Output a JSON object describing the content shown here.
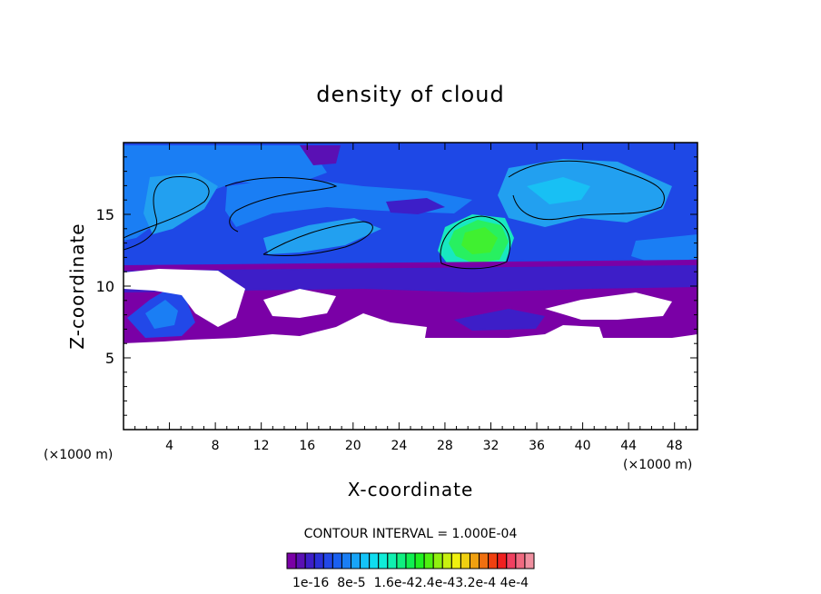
{
  "chart_data": {
    "type": "heatmap",
    "title": "density of cloud",
    "xlabel": "X-coordinate",
    "ylabel": "Z-coordinate",
    "x_unit_label_left": "(×1000 m)",
    "x_unit_label_right": "(×1000 m)",
    "xlim": [
      0,
      50
    ],
    "ylim": [
      0,
      20
    ],
    "x_ticks": [
      4,
      8,
      12,
      16,
      20,
      24,
      28,
      32,
      36,
      40,
      44,
      48
    ],
    "y_ticks": [
      5,
      10,
      15
    ],
    "grid": false,
    "contour_interval_text": "CONTOUR INTERVAL = 1.000E-04",
    "colorbar": {
      "colors": [
        "#7a00a6",
        "#5a10b4",
        "#3d1ec8",
        "#2a30d8",
        "#2248e8",
        "#1a60f0",
        "#1a7ef4",
        "#18a4f8",
        "#14c4f8",
        "#10dcf0",
        "#10ecd8",
        "#10f0b0",
        "#10f080",
        "#10f050",
        "#20f020",
        "#50f010",
        "#90f010",
        "#c8f010",
        "#f0f010",
        "#f0d010",
        "#f0a010",
        "#f07010",
        "#f04010",
        "#f02020",
        "#f04060",
        "#f06a80",
        "#f090a0"
      ],
      "labels": [
        "1e-16",
        "8e-5",
        "1.6e-4",
        "2.4e-4",
        "3.2e-4",
        "4e-4"
      ],
      "label_text": "1e-16  8e-5  1.6e-42.4e-43.2e-4 4e-4"
    },
    "regions": [
      {
        "name": "background-cloud",
        "level": 3e-05,
        "color": "#1e48e6"
      },
      {
        "name": "upper-light-band",
        "level": 6e-05,
        "color": "#22a0f0"
      },
      {
        "name": "lower-purple-layer",
        "level": 1e-06,
        "color": "#7a00a6"
      },
      {
        "name": "core-green",
        "level": 0.00022,
        "color": "#28f060"
      },
      {
        "name": "core-cyan",
        "level": 0.00014,
        "color": "#18e8c0"
      }
    ]
  }
}
